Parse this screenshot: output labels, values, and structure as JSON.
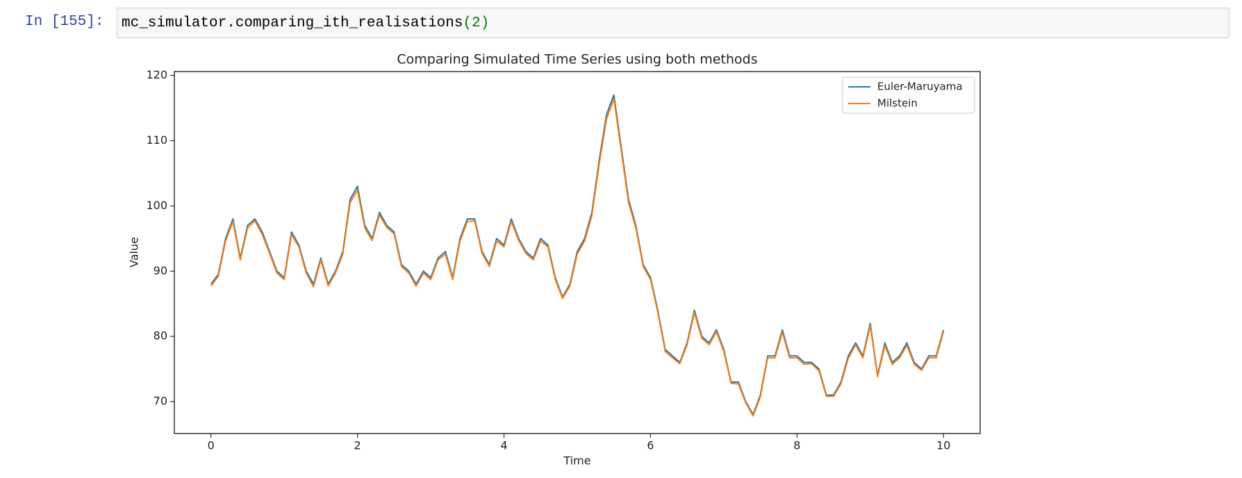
{
  "cell": {
    "prompt": "In [155]:",
    "code": "mc_simulator.comparing_ith_realisations",
    "code_args": "(2)"
  },
  "chart_data": {
    "type": "line",
    "title": "Comparing Simulated Time Series using both methods",
    "xlabel": "Time",
    "ylabel": "Value",
    "x": [
      0,
      0.1,
      0.2,
      0.3,
      0.4,
      0.5,
      0.6,
      0.7,
      0.8,
      0.9,
      1,
      1.1,
      1.2,
      1.3,
      1.4,
      1.5,
      1.6,
      1.7,
      1.8,
      1.9,
      2,
      2.1,
      2.2,
      2.3,
      2.4,
      2.5,
      2.6,
      2.7,
      2.8,
      2.9,
      3,
      3.1,
      3.2,
      3.3,
      3.4,
      3.5,
      3.6,
      3.7,
      3.8,
      3.9,
      4,
      4.1,
      4.2,
      4.3,
      4.4,
      4.5,
      4.6,
      4.7,
      4.8,
      4.9,
      5,
      5.1,
      5.2,
      5.3,
      5.4,
      5.5,
      5.6,
      5.7,
      5.8,
      5.9,
      6,
      6.1,
      6.2,
      6.3,
      6.4,
      6.5,
      6.6,
      6.7,
      6.8,
      6.9,
      7,
      7.1,
      7.2,
      7.3,
      7.4,
      7.5,
      7.6,
      7.7,
      7.8,
      7.9,
      8,
      8.1,
      8.2,
      8.3,
      8.4,
      8.5,
      8.6,
      8.7,
      8.8,
      8.9,
      9,
      9.1,
      9.2,
      9.3,
      9.4,
      9.5,
      9.6,
      9.7,
      9.8,
      9.9,
      10
    ],
    "series": [
      {
        "name": "Euler-Maruyama",
        "color": "#1f77b4",
        "values": [
          88,
          89.5,
          95,
          98,
          92,
          97,
          98,
          96,
          93,
          90,
          89,
          96,
          94,
          90,
          88,
          92,
          88,
          90,
          93,
          101,
          103,
          97,
          95,
          99,
          97,
          96,
          91,
          90,
          88,
          90,
          89,
          92,
          93,
          89,
          95,
          98,
          98,
          93,
          91,
          95,
          94,
          98,
          95,
          93,
          92,
          95,
          94,
          89,
          86,
          88,
          93,
          95,
          99,
          107,
          114,
          117,
          109,
          101,
          97,
          91,
          89,
          84,
          78,
          77,
          76,
          79,
          84,
          80,
          79,
          81,
          78,
          73,
          73,
          70,
          68,
          71,
          77,
          77,
          81,
          77,
          77,
          76,
          76,
          75,
          71,
          71,
          73,
          77,
          79,
          77,
          82,
          74,
          79,
          76,
          77,
          79,
          76,
          75,
          77,
          77,
          81
        ]
      },
      {
        "name": "Milstein",
        "color": "#ff7f0e",
        "values": [
          87.7,
          89.2,
          94.6,
          97.6,
          91.7,
          96.6,
          97.7,
          95.6,
          92.7,
          89.7,
          88.7,
          95.6,
          93.7,
          89.7,
          87.6,
          91.7,
          87.7,
          89.7,
          92.6,
          100.5,
          102.4,
          96.6,
          94.7,
          98.6,
          96.7,
          95.7,
          90.7,
          89.7,
          87.7,
          89.7,
          88.7,
          91.7,
          92.6,
          88.7,
          94.6,
          97.6,
          97.7,
          92.7,
          90.7,
          94.6,
          93.7,
          97.6,
          94.7,
          92.7,
          91.7,
          94.6,
          93.7,
          88.7,
          85.8,
          87.7,
          92.6,
          94.6,
          98.5,
          106.4,
          113.3,
          116.4,
          108.5,
          100.5,
          96.6,
          90.7,
          88.7,
          83.7,
          77.7,
          76.7,
          75.8,
          78.7,
          83.6,
          79.7,
          78.7,
          80.7,
          77.7,
          72.8,
          72.7,
          69.8,
          67.8,
          70.7,
          76.7,
          76.7,
          80.6,
          76.7,
          76.7,
          75.7,
          75.8,
          74.7,
          70.8,
          70.8,
          72.7,
          76.6,
          78.7,
          76.7,
          81.6,
          73.8,
          78.6,
          75.7,
          76.7,
          78.6,
          75.7,
          74.8,
          76.7,
          76.7,
          80.7
        ]
      }
    ],
    "xlim": [
      -0.5,
      10.5
    ],
    "ylim": [
      65.1,
      120.6
    ],
    "xticks": [
      0,
      2,
      4,
      6,
      8,
      10
    ],
    "yticks": [
      70,
      80,
      90,
      100,
      110,
      120
    ],
    "legend": "upper right"
  }
}
